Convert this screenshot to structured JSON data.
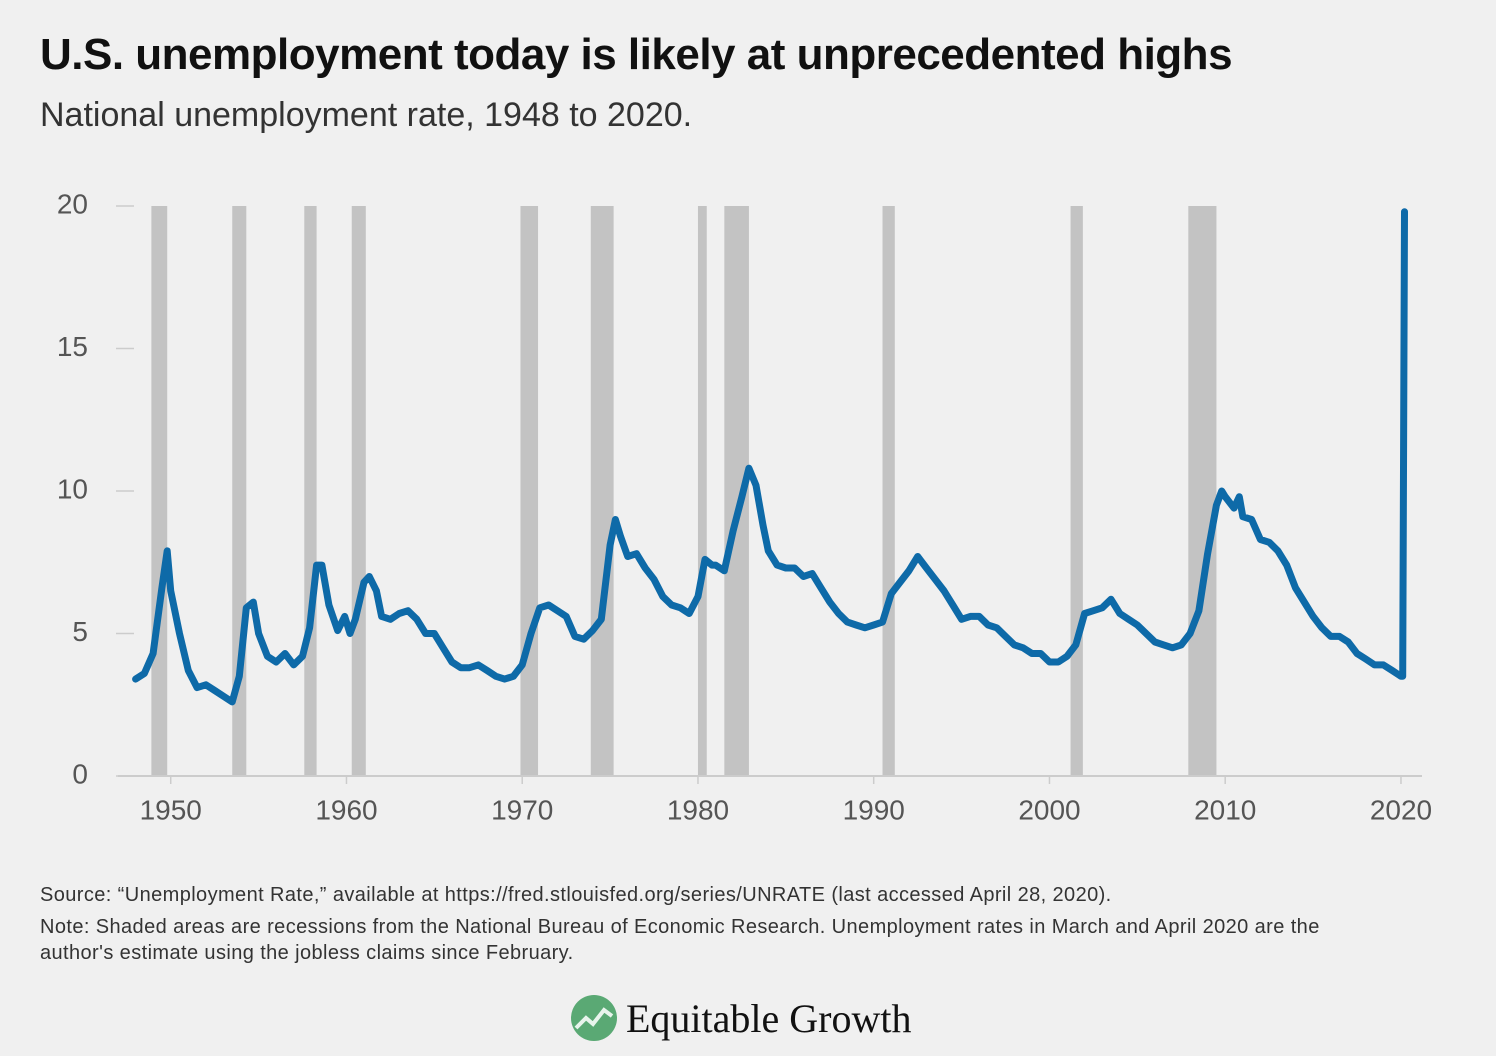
{
  "chart_data": {
    "type": "line",
    "title": "U.S. unemployment today is likely at unprecedented highs",
    "subtitle": "National unemployment rate, 1948 to 2020.",
    "source": "Source: “Unemployment Rate,” available at https://fred.stlouisfed.org/series/UNRATE (last accessed April 28, 2020).",
    "note": "Note: Shaded areas are recessions from the National Bureau of Economic Research. Unemployment rates in March and April 2020 are the author's estimate using the jobless claims since February.",
    "brand": "Equitable Growth",
    "color": "#0e6aa8",
    "recession_color": "#c3c3c3",
    "xlim": [
      1947,
      2020.4
    ],
    "xticks": [
      1950,
      1960,
      1970,
      1980,
      1990,
      2000,
      2010,
      2020
    ],
    "ylim": [
      0,
      20
    ],
    "yticks": [
      0,
      5,
      10,
      15,
      20
    ],
    "recessions": [
      [
        1948.9,
        1949.8
      ],
      [
        1953.5,
        1954.3
      ],
      [
        1957.6,
        1958.3
      ],
      [
        1960.3,
        1961.1
      ],
      [
        1969.9,
        1970.9
      ],
      [
        1973.9,
        1975.2
      ],
      [
        1980.0,
        1980.5
      ],
      [
        1981.5,
        1982.9
      ],
      [
        1990.5,
        1991.2
      ],
      [
        2001.2,
        2001.9
      ],
      [
        2007.9,
        2009.5
      ]
    ],
    "x": [
      1948.0,
      1948.5,
      1949.0,
      1949.5,
      1949.8,
      1950.0,
      1950.5,
      1951.0,
      1951.5,
      1952.0,
      1952.5,
      1953.0,
      1953.5,
      1953.9,
      1954.3,
      1954.7,
      1955.0,
      1955.5,
      1956.0,
      1956.5,
      1957.0,
      1957.5,
      1957.9,
      1958.3,
      1958.6,
      1959.0,
      1959.5,
      1959.9,
      1960.2,
      1960.5,
      1961.0,
      1961.3,
      1961.7,
      1962.0,
      1962.5,
      1963.0,
      1963.5,
      1964.0,
      1964.5,
      1965.0,
      1965.5,
      1966.0,
      1966.5,
      1967.0,
      1967.5,
      1968.0,
      1968.5,
      1969.0,
      1969.5,
      1970.0,
      1970.5,
      1971.0,
      1971.5,
      1972.0,
      1972.5,
      1973.0,
      1973.5,
      1974.0,
      1974.5,
      1975.0,
      1975.3,
      1975.6,
      1976.0,
      1976.5,
      1977.0,
      1977.5,
      1978.0,
      1978.5,
      1979.0,
      1979.5,
      1980.0,
      1980.4,
      1980.8,
      1981.0,
      1981.5,
      1982.0,
      1982.5,
      1982.9,
      1983.3,
      1983.7,
      1984.0,
      1984.5,
      1985.0,
      1985.5,
      1986.0,
      1986.5,
      1987.0,
      1987.5,
      1988.0,
      1988.5,
      1989.0,
      1989.5,
      1990.0,
      1990.5,
      1991.0,
      1991.5,
      1992.0,
      1992.5,
      1993.0,
      1993.5,
      1994.0,
      1994.5,
      1995.0,
      1995.5,
      1996.0,
      1996.5,
      1997.0,
      1997.5,
      1998.0,
      1998.5,
      1999.0,
      1999.5,
      2000.0,
      2000.5,
      2001.0,
      2001.5,
      2002.0,
      2002.5,
      2003.0,
      2003.5,
      2004.0,
      2004.5,
      2005.0,
      2005.5,
      2006.0,
      2006.5,
      2007.0,
      2007.5,
      2008.0,
      2008.5,
      2009.0,
      2009.5,
      2009.8,
      2010.0,
      2010.5,
      2010.8,
      2011.0,
      2011.5,
      2012.0,
      2012.5,
      2013.0,
      2013.5,
      2014.0,
      2014.5,
      2015.0,
      2015.5,
      2016.0,
      2016.5,
      2017.0,
      2017.5,
      2018.0,
      2018.5,
      2019.0,
      2019.5,
      2020.0,
      2020.1,
      2020.2
    ],
    "values": [
      3.4,
      3.6,
      4.3,
      6.6,
      7.9,
      6.5,
      5.0,
      3.7,
      3.1,
      3.2,
      3.0,
      2.8,
      2.6,
      3.5,
      5.9,
      6.1,
      5.0,
      4.2,
      4.0,
      4.3,
      3.9,
      4.2,
      5.2,
      7.4,
      7.4,
      6.0,
      5.1,
      5.6,
      5.0,
      5.5,
      6.8,
      7.0,
      6.5,
      5.6,
      5.5,
      5.7,
      5.8,
      5.5,
      5.0,
      5.0,
      4.5,
      4.0,
      3.8,
      3.8,
      3.9,
      3.7,
      3.5,
      3.4,
      3.5,
      3.9,
      5.0,
      5.9,
      6.0,
      5.8,
      5.6,
      4.9,
      4.8,
      5.1,
      5.5,
      8.1,
      9.0,
      8.4,
      7.7,
      7.8,
      7.3,
      6.9,
      6.3,
      6.0,
      5.9,
      5.7,
      6.3,
      7.6,
      7.4,
      7.4,
      7.2,
      8.6,
      9.8,
      10.8,
      10.2,
      8.8,
      7.9,
      7.4,
      7.3,
      7.3,
      7.0,
      7.1,
      6.6,
      6.1,
      5.7,
      5.4,
      5.3,
      5.2,
      5.3,
      5.4,
      6.4,
      6.8,
      7.2,
      7.7,
      7.3,
      6.9,
      6.5,
      6.0,
      5.5,
      5.6,
      5.6,
      5.3,
      5.2,
      4.9,
      4.6,
      4.5,
      4.3,
      4.3,
      4.0,
      4.0,
      4.2,
      4.6,
      5.7,
      5.8,
      5.9,
      6.2,
      5.7,
      5.5,
      5.3,
      5.0,
      4.7,
      4.6,
      4.5,
      4.6,
      5.0,
      5.8,
      7.8,
      9.5,
      10.0,
      9.8,
      9.4,
      9.8,
      9.1,
      9.0,
      8.3,
      8.2,
      7.9,
      7.4,
      6.6,
      6.1,
      5.6,
      5.2,
      4.9,
      4.9,
      4.7,
      4.3,
      4.1,
      3.9,
      3.9,
      3.7,
      3.5,
      3.5,
      19.8
    ]
  }
}
